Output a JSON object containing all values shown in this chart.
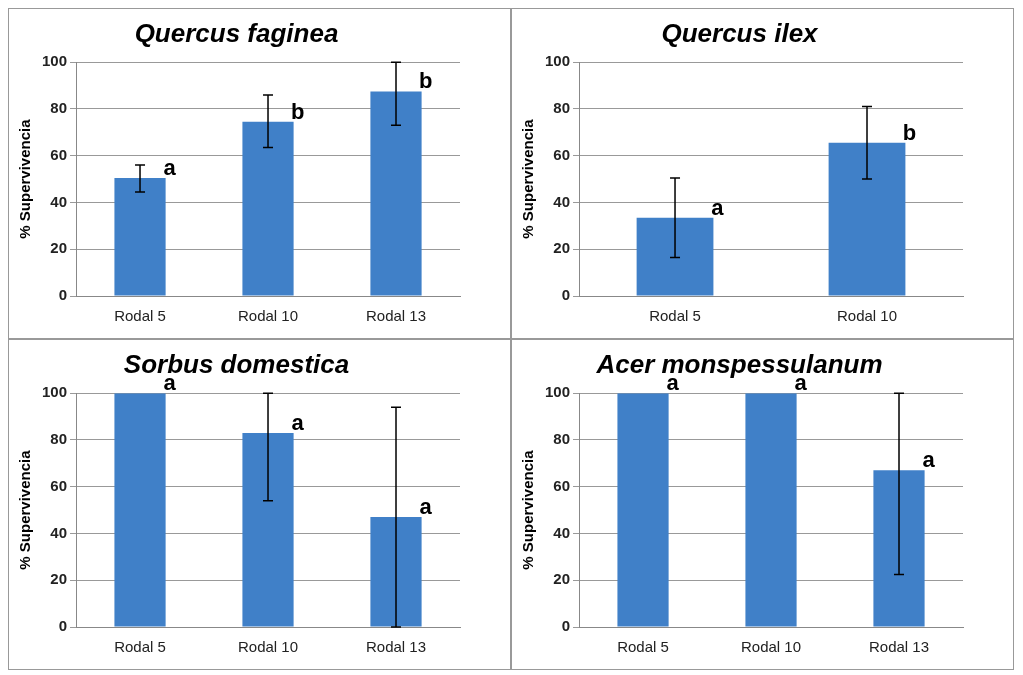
{
  "chart_data": [
    {
      "type": "bar",
      "title": "Quercus faginea",
      "ylabel": "% Supervivencia",
      "categories": [
        "Rodal 5",
        "Rodal 10",
        "Rodal 13"
      ],
      "values": [
        50.5,
        74.5,
        87.5
      ],
      "errors": [
        [
          44.5,
          56
        ],
        [
          63.5,
          86
        ],
        [
          73,
          100
        ]
      ],
      "color": "#4080c8",
      "ylim": [
        0,
        100
      ],
      "yticks": [
        0,
        20,
        40,
        60,
        80,
        100
      ],
      "grid": "y",
      "annotations": [
        {
          "text": "a",
          "x": "Rodal 5",
          "y": 50.5
        },
        {
          "text": "b",
          "x": "Rodal 10",
          "y": 74.5
        },
        {
          "text": "b",
          "x": "Rodal 13",
          "y": 87.5
        }
      ]
    },
    {
      "type": "bar",
      "title": "Quercus ilex",
      "ylabel": "% Supervivencia",
      "categories": [
        "Rodal 5",
        "Rodal 10"
      ],
      "values": [
        33.5,
        65.5
      ],
      "errors": [
        [
          16.5,
          50.5
        ],
        [
          50,
          81
        ]
      ],
      "color": "#4080c8",
      "ylim": [
        0,
        100
      ],
      "yticks": [
        0,
        20,
        40,
        60,
        80,
        100
      ],
      "grid": "y",
      "annotations": [
        {
          "text": "a",
          "x": "Rodal 5",
          "y": 33.5
        },
        {
          "text": "b",
          "x": "Rodal 10",
          "y": 65.5
        }
      ]
    },
    {
      "type": "bar",
      "title": "Sorbus domestica",
      "ylabel": "% Supervivencia",
      "categories": [
        "Rodal 5",
        "Rodal 10",
        "Rodal 13"
      ],
      "values": [
        100,
        83,
        47
      ],
      "errors": [
        null,
        [
          54,
          100
        ],
        [
          0,
          94
        ]
      ],
      "color": "#4080c8",
      "ylim": [
        0,
        100
      ],
      "yticks": [
        0,
        20,
        40,
        60,
        80,
        100
      ],
      "grid": "y",
      "annotations": [
        {
          "text": "a",
          "x": "Rodal 5",
          "y": 100
        },
        {
          "text": "a",
          "x": "Rodal 10",
          "y": 83
        },
        {
          "text": "a",
          "x": "Rodal 13",
          "y": 47
        }
      ]
    },
    {
      "type": "bar",
      "title": "Acer monspessulanum",
      "ylabel": "% Supervivencia",
      "categories": [
        "Rodal 5",
        "Rodal 10",
        "Rodal 13"
      ],
      "values": [
        100,
        100,
        67
      ],
      "errors": [
        null,
        null,
        [
          22.5,
          100
        ]
      ],
      "color": "#4080c8",
      "ylim": [
        0,
        100
      ],
      "yticks": [
        0,
        20,
        40,
        60,
        80,
        100
      ],
      "grid": "y",
      "annotations": [
        {
          "text": "a",
          "x": "Rodal 5",
          "y": 100
        },
        {
          "text": "a",
          "x": "Rodal 10",
          "y": 100
        },
        {
          "text": "a",
          "x": "Rodal 13",
          "y": 67
        }
      ]
    }
  ]
}
